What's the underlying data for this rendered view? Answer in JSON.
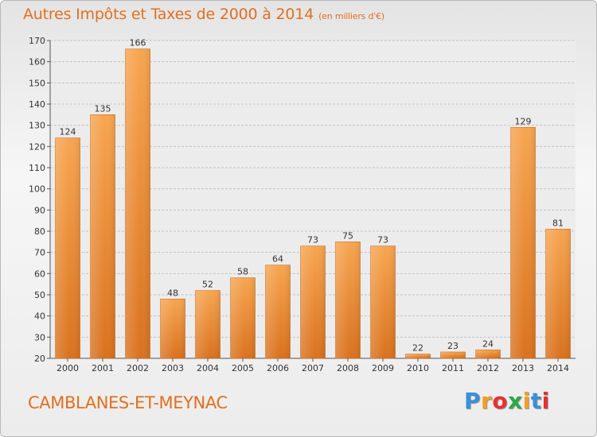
{
  "header": {
    "title": "Autres Impôts et Taxes de 2000 à 2014",
    "subtitle": "(en milliers d'€)"
  },
  "footer": {
    "commune": "CAMBLANES-ET-MEYNAC",
    "logo_letters": [
      "P",
      "r",
      "o",
      "x",
      "i",
      "t",
      "i"
    ],
    "logo_colors": [
      "#3a8fd8",
      "#f0a020",
      "#e83030",
      "#2aa84a",
      "#f0a020",
      "#3a8fd8",
      "#e83030"
    ]
  },
  "chart_data": {
    "type": "bar",
    "title": "Autres Impôts et Taxes de 2000 à 2014",
    "subtitle": "(en milliers d'€)",
    "categories": [
      "2000",
      "2001",
      "2002",
      "2003",
      "2004",
      "2005",
      "2006",
      "2007",
      "2008",
      "2009",
      "2010",
      "2011",
      "2012",
      "2013",
      "2014"
    ],
    "values": [
      124,
      135,
      166,
      48,
      52,
      58,
      64,
      73,
      75,
      73,
      22,
      23,
      24,
      129,
      81
    ],
    "ylim": [
      20,
      170
    ],
    "yticks": [
      20,
      30,
      40,
      50,
      60,
      70,
      80,
      90,
      100,
      110,
      120,
      130,
      140,
      150,
      160,
      170
    ],
    "grid": true,
    "bar_color_top": "#f7a550",
    "bar_color_bottom": "#d9721e"
  }
}
